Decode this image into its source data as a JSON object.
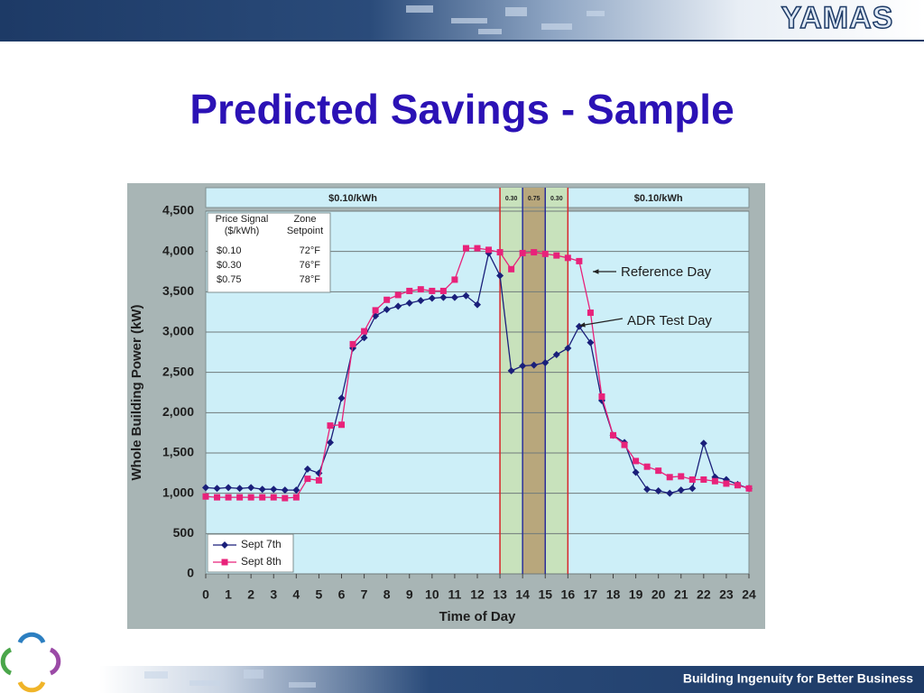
{
  "header": {
    "logo": "YAMAS"
  },
  "title": "Predicted Savings - Sample",
  "footer": "Building Ingenuity for Better Business",
  "chart_data": {
    "type": "line",
    "xlabel": "Time of Day",
    "ylabel": "Whole Building Power (kW)",
    "xlim": [
      0,
      24
    ],
    "ylim": [
      0,
      4500
    ],
    "xticks": [
      0,
      1,
      2,
      3,
      4,
      5,
      6,
      7,
      8,
      9,
      10,
      11,
      12,
      13,
      14,
      15,
      16,
      17,
      18,
      19,
      20,
      21,
      22,
      23,
      24
    ],
    "yticks": [
      0,
      500,
      {
        "value": 1000,
        "label": "1,000"
      },
      {
        "value": 1500,
        "label": "1,500"
      },
      {
        "value": 2000,
        "label": "2,000"
      },
      {
        "value": 2500,
        "label": "2,500"
      },
      {
        "value": 3000,
        "label": "3,000"
      },
      {
        "value": 3500,
        "label": "3,500"
      },
      {
        "value": 4000,
        "label": "4,000"
      },
      {
        "value": 4500,
        "label": "4,500"
      }
    ],
    "grid": true,
    "legend": "lower left",
    "x": [
      0,
      0.5,
      1,
      1.5,
      2,
      2.5,
      3,
      3.5,
      4,
      4.5,
      5,
      5.5,
      6,
      6.5,
      7,
      7.5,
      8,
      8.5,
      9,
      9.5,
      10,
      10.5,
      11,
      11.5,
      12,
      12.5,
      13,
      13.5,
      14,
      14.5,
      15,
      15.5,
      16,
      16.5,
      17,
      17.5,
      18,
      18.5,
      19,
      19.5,
      20,
      20.5,
      21,
      21.5,
      22,
      22.5,
      23,
      23.5,
      24
    ],
    "series": [
      {
        "name": "Sept 7th",
        "color": "#1a1f7a",
        "marker": "diamond",
        "values": [
          1070,
          1060,
          1070,
          1060,
          1070,
          1050,
          1050,
          1040,
          1040,
          1300,
          1250,
          1630,
          2180,
          2800,
          2930,
          3200,
          3280,
          3320,
          3360,
          3390,
          3420,
          3430,
          3430,
          3450,
          3340,
          3980,
          3700,
          2520,
          2580,
          2590,
          2620,
          2720,
          2800,
          3070,
          2870,
          2150,
          1720,
          1630,
          1260,
          1050,
          1030,
          1000,
          1040,
          1060,
          1620,
          1200,
          1170,
          1110,
          1060
        ]
      },
      {
        "name": "Sept 8th",
        "color": "#e8227a",
        "marker": "square",
        "values": [
          960,
          950,
          950,
          950,
          950,
          950,
          950,
          940,
          950,
          1180,
          1160,
          1840,
          1850,
          2850,
          3010,
          3270,
          3400,
          3460,
          3510,
          3530,
          3510,
          3510,
          3650,
          4040,
          4040,
          4020,
          3990,
          3780,
          3980,
          3990,
          3970,
          3950,
          3920,
          3880,
          3240,
          2200,
          1720,
          1600,
          1400,
          1330,
          1280,
          1200,
          1210,
          1170,
          1170,
          1150,
          1120,
          1100,
          1060
        ]
      }
    ],
    "bands": [
      {
        "start": 0,
        "end": 13,
        "label": "$0.10/kWh"
      },
      {
        "start": 13,
        "end": 14,
        "label": "0.30",
        "color": "#c8e2bc"
      },
      {
        "start": 14,
        "end": 15,
        "label": "0.75",
        "color": "#b8a77c"
      },
      {
        "start": 15,
        "end": 16,
        "label": "0.30",
        "color": "#c8e2bc"
      },
      {
        "start": 16,
        "end": 24,
        "label": "$0.10/kWh"
      }
    ],
    "vlines": [
      {
        "x": 13,
        "color": "#d8262b"
      },
      {
        "x": 14,
        "color": "#2b2f9a"
      },
      {
        "x": 15,
        "color": "#2b2f9a"
      },
      {
        "x": 16,
        "color": "#d8262b"
      }
    ],
    "annotations": [
      "Reference Day",
      "ADR Test Day"
    ],
    "table": {
      "headers": [
        [
          "Price Signal",
          "($/kWh)"
        ],
        [
          "Zone",
          "Setpoint"
        ]
      ],
      "rows": [
        [
          "$0.10",
          "72°F"
        ],
        [
          "$0.30",
          "76°F"
        ],
        [
          "$0.75",
          "78°F"
        ]
      ]
    }
  }
}
